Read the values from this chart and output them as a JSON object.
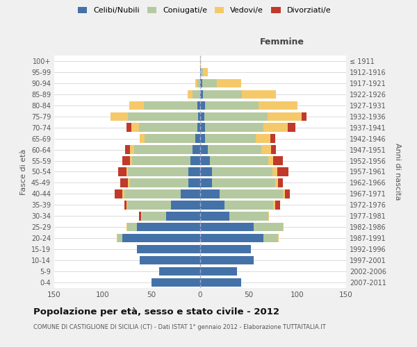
{
  "age_groups": [
    "0-4",
    "5-9",
    "10-14",
    "15-19",
    "20-24",
    "25-29",
    "30-34",
    "35-39",
    "40-44",
    "45-49",
    "50-54",
    "55-59",
    "60-64",
    "65-69",
    "70-74",
    "75-79",
    "80-84",
    "85-89",
    "90-94",
    "95-99",
    "100+"
  ],
  "birth_years": [
    "2007-2011",
    "2002-2006",
    "1997-2001",
    "1992-1996",
    "1987-1991",
    "1982-1986",
    "1977-1981",
    "1972-1976",
    "1967-1971",
    "1962-1966",
    "1957-1961",
    "1952-1956",
    "1947-1951",
    "1942-1946",
    "1937-1941",
    "1932-1936",
    "1927-1931",
    "1922-1926",
    "1917-1921",
    "1912-1916",
    "≤ 1911"
  ],
  "male": {
    "celibi": [
      50,
      42,
      62,
      65,
      80,
      65,
      35,
      30,
      20,
      12,
      12,
      10,
      8,
      5,
      3,
      2,
      3,
      0,
      0,
      0,
      0
    ],
    "coniugati": [
      0,
      0,
      0,
      0,
      5,
      10,
      25,
      45,
      58,
      60,
      62,
      60,
      60,
      52,
      60,
      72,
      55,
      8,
      3,
      0,
      0
    ],
    "vedovi": [
      0,
      0,
      0,
      0,
      1,
      1,
      1,
      1,
      2,
      2,
      2,
      2,
      4,
      5,
      8,
      18,
      15,
      5,
      2,
      0,
      0
    ],
    "divorziati": [
      0,
      0,
      0,
      0,
      0,
      0,
      2,
      2,
      8,
      8,
      8,
      8,
      5,
      0,
      5,
      0,
      0,
      0,
      0,
      0,
      0
    ]
  },
  "female": {
    "nubili": [
      42,
      38,
      55,
      52,
      65,
      55,
      30,
      25,
      20,
      12,
      12,
      10,
      8,
      5,
      5,
      4,
      5,
      3,
      2,
      1,
      0
    ],
    "coniugate": [
      0,
      0,
      0,
      0,
      15,
      30,
      40,
      50,
      65,
      65,
      62,
      60,
      55,
      52,
      60,
      65,
      55,
      40,
      15,
      2,
      0
    ],
    "vedove": [
      0,
      0,
      0,
      0,
      1,
      1,
      1,
      2,
      2,
      3,
      5,
      5,
      10,
      15,
      25,
      35,
      40,
      35,
      25,
      5,
      1
    ],
    "divorziate": [
      0,
      0,
      0,
      0,
      0,
      0,
      0,
      5,
      5,
      5,
      12,
      10,
      5,
      5,
      8,
      5,
      0,
      0,
      0,
      0,
      0
    ]
  },
  "colors": {
    "celibi": "#4472a8",
    "coniugati": "#b5c9a0",
    "vedovi": "#f5c96a",
    "divorziati": "#c0392b"
  },
  "xlim": 150,
  "title": "Popolazione per età, sesso e stato civile - 2012",
  "subtitle": "COMUNE DI CASTIGLIONE DI SICILIA (CT) - Dati ISTAT 1° gennaio 2012 - Elaborazione TUTTAITALIA.IT",
  "ylabel_left": "Fasce di età",
  "ylabel_right": "Anni di nascita",
  "xlabel_female": "Femmine",
  "bg_color": "#f0f0f0",
  "plot_bg": "#ffffff"
}
